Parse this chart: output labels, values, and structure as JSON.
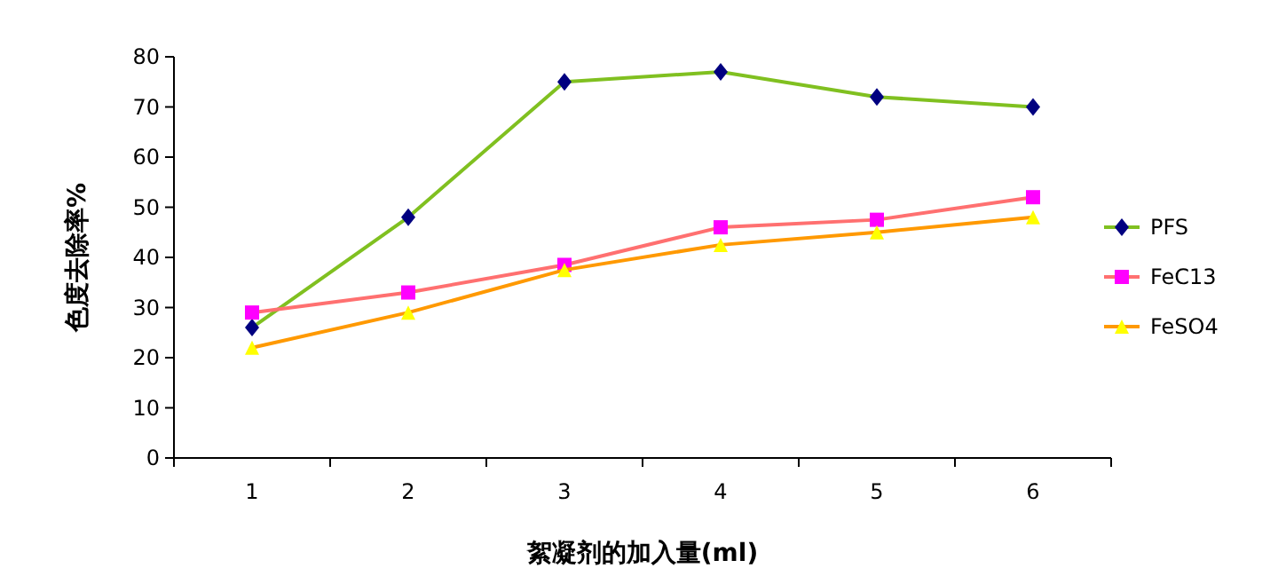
{
  "chart_data": {
    "type": "line",
    "xlabel": "絮凝剂的加入量(ml)",
    "ylabel": "色度去除率%",
    "categories": [
      "1",
      "2",
      "3",
      "4",
      "5",
      "6"
    ],
    "ylim": [
      0,
      80
    ],
    "yticks": [
      0,
      10,
      20,
      30,
      40,
      50,
      60,
      70,
      80
    ],
    "grid": false,
    "legend": "right",
    "series": [
      {
        "name": "PFS",
        "color": "#80c020",
        "marker": "diamond",
        "values": [
          26,
          48,
          75,
          77,
          72,
          70
        ]
      },
      {
        "name": "FeC13",
        "color": "#ff7070",
        "marker": "square",
        "values": [
          29,
          33,
          38.5,
          46,
          47.5,
          52
        ]
      },
      {
        "name": "FeSO4",
        "color": "#ff9900",
        "marker": "triangle",
        "values": [
          22,
          29,
          37.5,
          42.5,
          45,
          48
        ]
      }
    ]
  }
}
